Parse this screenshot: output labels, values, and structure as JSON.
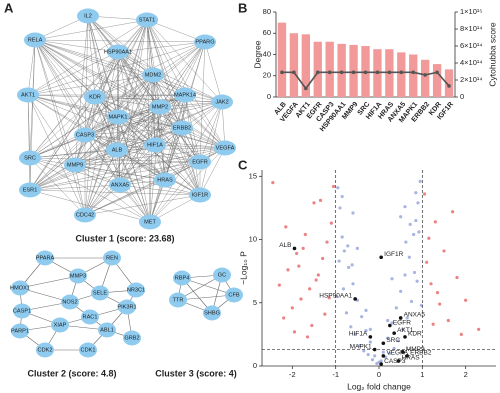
{
  "panel_labels": [
    "A",
    "B",
    "C"
  ],
  "networks": [
    {
      "title": "Cluster 1 (score: 23.68)",
      "nodes": [
        "IL2",
        "STAT1",
        "RELA",
        "PPARG",
        "HSP90AA1",
        "MDM2",
        "AKT1",
        "KDR",
        "MAPK14",
        "JAK2",
        "MMP2",
        "MAPK1",
        "SRC",
        "CASP3",
        "ERBB2",
        "HIF1A",
        "ALB",
        "VEGFA",
        "ESR1",
        "EGFR",
        "MMP9",
        "HRAS",
        "ANXA5",
        "IGF1R",
        "CDC42",
        "MET"
      ]
    },
    {
      "title": "Cluster 2 (score: 4.8)",
      "nodes": [
        "PPARA",
        "REN",
        "MMP3",
        "HMOX1",
        "SELE",
        "NR3C1",
        "NOS2",
        "PIK3R1",
        "CASP1",
        "RAC1",
        "PARP1",
        "XIAP",
        "ABL1",
        "GRB2",
        "CDK2",
        "CDK1"
      ]
    },
    {
      "title": "Cluster 3 (score: 4)",
      "nodes": [
        "RBP4",
        "GC",
        "CFB",
        "TTR",
        "SHBG"
      ]
    }
  ],
  "chart_data": [
    {
      "type": "bar",
      "ylabel": "Degree",
      "y2label": "Cytohubba score",
      "categories": [
        "ALB",
        "VEGFA",
        "AKT1",
        "EGFR",
        "CASP3",
        "HSP90AA1",
        "MMP9",
        "SRC",
        "HIF1A",
        "HRAS",
        "ANXA5",
        "MAPK1",
        "ERBB2",
        "KDR",
        "IGF1R"
      ],
      "series": [
        {
          "type": "bar",
          "color": "#f29a9a",
          "values": [
            70,
            60,
            59,
            52,
            52,
            50,
            49,
            48,
            45,
            45,
            42,
            40,
            35,
            31,
            26
          ]
        },
        {
          "type": "line",
          "axis": "y2",
          "color": "#555555",
          "values": [
            290000000000000,
            290000000000000,
            100000000000000,
            290000000000000,
            290000000000000,
            290000000000000,
            290000000000000,
            290000000000000,
            290000000000000,
            290000000000000,
            290000000000000,
            290000000000000,
            260000000000000,
            290000000000000,
            130000000000000
          ]
        }
      ],
      "ylim": [
        0,
        80
      ],
      "yticks": [
        0,
        20,
        40,
        60,
        80
      ],
      "y2lim": [
        0,
        1000000000000000
      ],
      "y2ticks": [
        0,
        {
          "value": 200000000000000,
          "label": "2×10¹⁴"
        },
        {
          "value": 400000000000000,
          "label": "4×10¹⁴"
        },
        {
          "value": 600000000000000,
          "label": "6×10¹⁴"
        },
        {
          "value": 800000000000000,
          "label": "8×10¹⁴"
        },
        {
          "value": 1000000000000000,
          "label": "1×10¹⁵"
        }
      ]
    },
    {
      "type": "scatter",
      "xlabel": "Log₂ fold change",
      "ylabel": "−Log₁₀ P",
      "xlim": [
        -2.7,
        2.7
      ],
      "ylim": [
        0,
        15.5
      ],
      "xticks": [
        -2,
        -1,
        0,
        1,
        2
      ],
      "yticks": [
        0,
        5,
        10,
        15
      ],
      "thresholds": {
        "x": [
          -1,
          1
        ],
        "y": 1.3
      },
      "series": [
        {
          "color": "#9eadde",
          "x": [
            -0.9,
            -0.85,
            -0.8,
            -0.95,
            -0.7,
            -0.6,
            -0.5,
            -0.4,
            -0.3,
            -0.2,
            -0.1,
            0,
            0.1,
            0.2,
            0.3,
            0.4,
            0.5,
            0.6,
            0.7,
            0.8,
            0.9,
            0.95,
            0.85,
            -0.75,
            -0.65,
            -0.55,
            -0.45,
            -0.35,
            -0.25,
            -0.15,
            -0.05,
            0.05,
            0.15,
            0.25,
            0.35,
            0.45,
            0.55,
            0.65,
            0.75,
            0.88,
            -0.92,
            -0.82,
            -0.72,
            -0.62,
            0.62,
            0.72,
            0.82,
            0.92,
            -0.98,
            0.98,
            -0.5,
            0.5,
            -0.3,
            0.3,
            -0.85,
            0.85,
            -0.6,
            0.6,
            -0.2,
            0.2
          ],
          "y": [
            12.5,
            10.2,
            9.1,
            14.1,
            7.8,
            6.5,
            5.2,
            3.9,
            2.8,
            1.9,
            0.8,
            0.3,
            1.1,
            2.2,
            3.4,
            4.6,
            5.9,
            7.2,
            8.6,
            10.4,
            12.9,
            14.6,
            11.5,
            4.2,
            3.1,
            2.5,
            1.6,
            1.2,
            0.9,
            0.5,
            0.2,
            0.4,
            0.7,
            1.0,
            1.4,
            2.0,
            2.9,
            3.8,
            5.1,
            6.7,
            8.3,
            6.1,
            9.5,
            8.0,
            9.8,
            11.2,
            7.4,
            10.6,
            5.5,
            4.8,
            9.3,
            11.8,
            4.4,
            6.9,
            13.4,
            13.7,
            12.1,
            12.6,
            2.9,
            3.6
          ]
        },
        {
          "color": "#e97575",
          "x": [
            -1.1,
            -1.2,
            -1.3,
            -1.4,
            -1.5,
            -1.6,
            -1.7,
            -1.8,
            -1.9,
            -2.0,
            -2.1,
            -2.2,
            -2.3,
            -2.45,
            -1.15,
            -1.35,
            -1.55,
            -1.75,
            -1.95,
            -2.15,
            -1.05,
            -1.25,
            -1.45,
            -1.65,
            -1.85,
            1.05,
            1.1,
            1.2,
            1.3,
            1.4,
            1.5,
            1.6,
            1.8,
            2.0,
            2.3,
            1.15,
            1.25,
            1.35,
            1.7,
            1.9
          ],
          "y": [
            11.3,
            9.8,
            8.5,
            7.2,
            12.9,
            6.1,
            10.4,
            5.3,
            8.9,
            4.6,
            7.6,
            3.8,
            6.4,
            14.5,
            5.4,
            13.1,
            3.2,
            9.3,
            2.7,
            11.0,
            14.2,
            4.1,
            6.8,
            2.3,
            7.9,
            13.6,
            8.2,
            6.5,
            11.4,
            4.9,
            9.1,
            3.6,
            7.0,
            5.2,
            2.9,
            10.1,
            3.3,
            5.8,
            12.2,
            2.5
          ]
        }
      ],
      "annotations": [
        {
          "text": "ALB",
          "x": -1.95,
          "y": 9.3
        },
        {
          "text": "IGF1R",
          "x": 0.05,
          "y": 8.6
        },
        {
          "text": "HSP90AA1",
          "x": -0.55,
          "y": 5.3
        },
        {
          "text": "ANXA5",
          "x": 0.5,
          "y": 3.8
        },
        {
          "text": "EGFR",
          "x": 0.25,
          "y": 3.2
        },
        {
          "text": "AKT1",
          "x": 0.35,
          "y": 2.6
        },
        {
          "text": "KDR",
          "x": 0.6,
          "y": 2.3
        },
        {
          "text": "HIF1A",
          "x": -0.2,
          "y": 2.3
        },
        {
          "text": "SRC",
          "x": 0.1,
          "y": 1.8
        },
        {
          "text": "MAPK1",
          "x": -0.1,
          "y": 1.3
        },
        {
          "text": "MMP9",
          "x": 0.55,
          "y": 1.1
        },
        {
          "text": "VEGFA",
          "x": 0.1,
          "y": 0.8
        },
        {
          "text": "ERBB2",
          "x": 0.65,
          "y": 0.8
        },
        {
          "text": "HRAS",
          "x": 0.45,
          "y": 0.4
        },
        {
          "text": "CASP3",
          "x": 0.05,
          "y": 0.15
        }
      ]
    }
  ]
}
